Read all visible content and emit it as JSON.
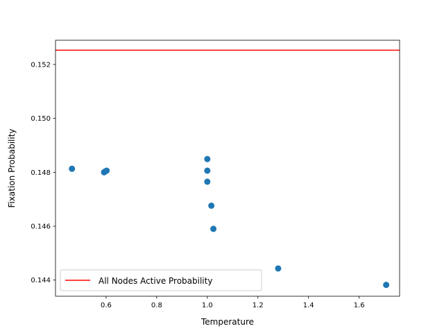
{
  "chart_data": {
    "type": "scatter",
    "title": "",
    "xlabel": "Temperature",
    "ylabel": "Fixation Probability",
    "xlim": [
      0.4,
      1.76
    ],
    "ylim": [
      0.1434,
      0.1529
    ],
    "xticks": [
      0.6,
      0.8,
      1.0,
      1.2,
      1.4,
      1.6
    ],
    "xtick_labels": [
      "0.6",
      "0.8",
      "1.0",
      "1.2",
      "1.4",
      "1.6"
    ],
    "yticks": [
      0.144,
      0.146,
      0.148,
      0.15,
      0.152
    ],
    "ytick_labels": [
      "0.144",
      "0.146",
      "0.148",
      "0.150",
      "0.152"
    ],
    "grid": false,
    "legend_position": "lower-left",
    "series": [
      {
        "kind": "scatter",
        "color": "#1f77b4",
        "points": [
          {
            "x": 0.465,
            "y": 0.14813
          },
          {
            "x": 0.592,
            "y": 0.148
          },
          {
            "x": 0.596,
            "y": 0.14803
          },
          {
            "x": 0.602,
            "y": 0.14806
          },
          {
            "x": 1.0,
            "y": 0.14849
          },
          {
            "x": 1.0,
            "y": 0.14806
          },
          {
            "x": 1.0,
            "y": 0.14765
          },
          {
            "x": 1.016,
            "y": 0.14676
          },
          {
            "x": 1.024,
            "y": 0.1459
          },
          {
            "x": 1.28,
            "y": 0.14443
          },
          {
            "x": 1.707,
            "y": 0.14382
          }
        ]
      },
      {
        "kind": "hline",
        "name": "All Nodes Active Probability",
        "color": "#ff0000",
        "y": 0.15253
      }
    ]
  }
}
